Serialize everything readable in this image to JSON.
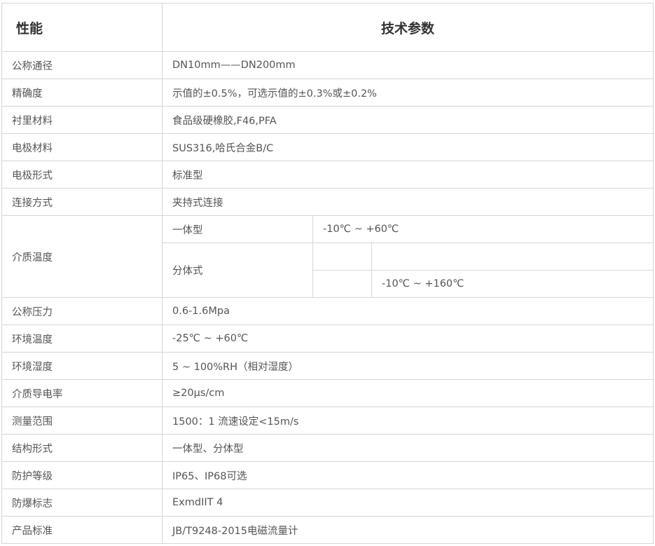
{
  "header": {
    "col1": "性能",
    "col2": "技术参数"
  },
  "rows": [
    {
      "label": "公称通径",
      "value": "DN10mm——DN200mm"
    },
    {
      "label": "精确度",
      "value": "示值的±0.5%，可选示值的±0.3%或±0.2%"
    },
    {
      "label": "衬里材料",
      "value": "食品级硬橡胶,F46,PFA"
    },
    {
      "label": "电极材料",
      "value": "SUS316,哈氏合金B/C"
    },
    {
      "label": "电极形式",
      "value": "标准型"
    },
    {
      "label": "连接方式",
      "value": "夹持式连接"
    }
  ],
  "medium_temp": {
    "label": "介质温度",
    "integral": "一体型",
    "integral_value": "-10℃ ~ +60℃",
    "split": "分体式",
    "split_value": "-10℃ ~ +160℃"
  },
  "rows2": [
    {
      "label": "公称压力",
      "value": "0.6-1.6Mpa"
    },
    {
      "label": "环境温度",
      "value": "-25℃ ~ +60℃"
    },
    {
      "label": "环境湿度",
      "value": "5 ~ 100%RH（相对湿度）"
    },
    {
      "label": "介质导电率",
      "value": "≥20μs/cm"
    },
    {
      "label": "测量范围",
      "value": "1500：1  流速设定<15m/s"
    },
    {
      "label": "结构形式",
      "value": "一体型、分体型"
    },
    {
      "label": "防护等级",
      "value": "IP65、IP68可选"
    },
    {
      "label": "防爆标志",
      "value": "ExmdIIT 4"
    },
    {
      "label": "产品标准",
      "value": "JB/T9248-2015电磁流量计"
    }
  ]
}
